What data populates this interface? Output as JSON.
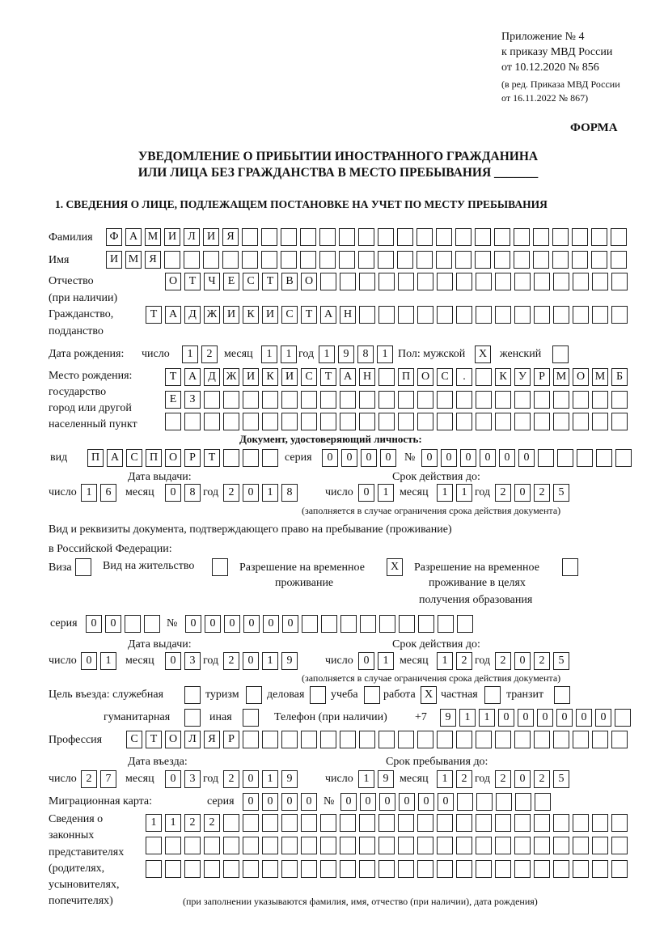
{
  "header": {
    "appendix": "Приложение № 4",
    "order": "к приказу МВД России",
    "order_date": "от 10.12.2020 № 856",
    "edition1": "(в ред. Приказа МВД России",
    "edition2": "от 16.11.2022 № 867)",
    "form": "ФОРМА",
    "title1": "УВЕДОМЛЕНИЕ О ПРИБЫТИИ ИНОСТРАННОГО ГРАЖДАНИНА",
    "title2": "ИЛИ ЛИЦА БЕЗ ГРАЖДАНСТВА В МЕСТО ПРЕБЫВАНИЯ _______",
    "section1": "1. СВЕДЕНИЯ О ЛИЦЕ, ПОДЛЕЖАЩЕМ ПОСТАНОВКЕ НА УЧЕТ ПО МЕСТУ ПРЕБЫВАНИЯ"
  },
  "labels": {
    "surname": "Фамилия",
    "name": "Имя",
    "patronymic1": "Отчество",
    "patronymic2": "(при наличии)",
    "citizenship1": "Гражданство,",
    "citizenship2": "подданство",
    "dob": "Дата рождения:",
    "day": "число",
    "month": "месяц",
    "year": "год",
    "sex": "Пол: мужской",
    "female": "женский",
    "pob1": "Место рождения:",
    "pob2": "государство",
    "pob3": "город или другой",
    "pob4": "населенный пункт",
    "id_doc": "Документ, удостоверяющий личность:",
    "kind": "вид",
    "series": "серия",
    "number": "№",
    "issue_date": "Дата выдачи:",
    "valid_until": "Срок действия до:",
    "validity_note": "(заполняется в случае ограничения срока действия документа)",
    "right_doc1": "Вид и реквизиты документа, подтверждающего право на пребывание (проживание)",
    "right_doc2": "в Российской Федерации:",
    "visa": "Виза",
    "residence": "Вид на жительство",
    "trp1": "Разрешение на временное",
    "trp2": "проживание",
    "trp_edu1": "Разрешение на временное",
    "trp_edu2": "проживание в целях",
    "trp_edu3": "получения образования",
    "purpose": "Цель въезда: служебная",
    "tourism": "туризм",
    "business": "деловая",
    "study": "учеба",
    "work": "работа",
    "private": "частная",
    "transit": "транзит",
    "humanitarian": "гуманитарная",
    "other": "иная",
    "phone": "Телефон (при наличии)",
    "phone_prefix": "+7",
    "profession": "Профессия",
    "entry_date": "Дата въезда:",
    "stay_until": "Срок пребывания до:",
    "migration_card": "Миграционная карта:",
    "reps1": "Сведения о",
    "reps2": "законных",
    "reps3": "представителях",
    "reps4": "(родителях,",
    "reps5": "усыновителях,",
    "reps6": "попечителях)",
    "reps_note": "(при заполнении указываются фамилия, имя, отчество (при наличии), дата рождения)"
  },
  "person": {
    "surname": "ФАМИЛИЯ",
    "name": "ИМЯ",
    "patronymic": "ОТЧЕСТВО",
    "citizenship": "ТАДЖИКИСТАН",
    "dob_day": "12",
    "dob_month": "11",
    "dob_year": "1981",
    "sex_male": "X",
    "sex_female": "",
    "pob_line1": "ТАДЖИКИСТАН ПОС. КУРМОМБ",
    "pob_line2": "ЕЗ",
    "pob_line3": ""
  },
  "id_document": {
    "kind": "ПАСПОРТ",
    "series": "0000",
    "number": "000000",
    "issue_day": "16",
    "issue_month": "08",
    "issue_year": "2018",
    "valid_day": "01",
    "valid_month": "11",
    "valid_year": "2025"
  },
  "right_document": {
    "visa": "",
    "residence": "",
    "trp": "X",
    "trp_edu": "",
    "series": "00",
    "number": "000000",
    "issue_day": "01",
    "issue_month": "03",
    "issue_year": "2019",
    "valid_day": "01",
    "valid_month": "12",
    "valid_year": "2025"
  },
  "purpose": {
    "official": "",
    "tourism": "",
    "business": "",
    "study": "",
    "work": "X",
    "private": "",
    "transit": "",
    "humanitarian": "",
    "other": ""
  },
  "phone": "911000000",
  "profession": "СТОЛЯР",
  "stay": {
    "entry_day": "27",
    "entry_month": "03",
    "entry_year": "2019",
    "until_day": "19",
    "until_month": "12",
    "until_year": "2025"
  },
  "migration_card": {
    "series": "0000",
    "number": "000000"
  },
  "representatives": {
    "line1": "1122",
    "line2": "",
    "line3": ""
  }
}
